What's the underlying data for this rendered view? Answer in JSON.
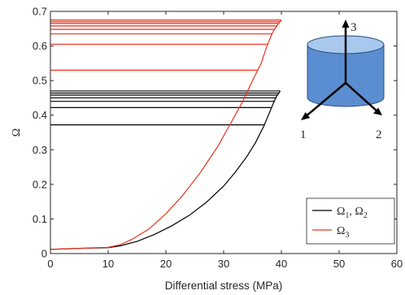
{
  "chart_data": {
    "type": "line",
    "title": "",
    "xlabel": "Differential stress (MPa)",
    "ylabel": "Ω",
    "xlim": [
      0,
      60
    ],
    "ylim": [
      0,
      0.7
    ],
    "x_ticks": [
      "0",
      "10",
      "20",
      "30",
      "40",
      "50",
      "60"
    ],
    "y_ticks": [
      "0",
      "0.1",
      "0.2",
      "0.3",
      "0.4",
      "0.5",
      "0.6",
      "0.7"
    ],
    "grid": false,
    "legend_position": "bottom-right",
    "legend": [
      {
        "label": "Ω",
        "sub": "1",
        "label2": ", Ω",
        "sub2": "2",
        "color": "#000000"
      },
      {
        "label": "Ω",
        "sub": "3",
        "color": "#e8321e"
      }
    ],
    "series": [
      {
        "series_key": "omega12",
        "color": "#000000",
        "curve": [
          [
            0,
            0.012
          ],
          [
            5,
            0.015
          ],
          [
            10,
            0.017
          ],
          [
            12,
            0.022
          ],
          [
            15,
            0.035
          ],
          [
            18,
            0.055
          ],
          [
            21,
            0.08
          ],
          [
            24,
            0.11
          ],
          [
            27,
            0.148
          ],
          [
            30,
            0.195
          ],
          [
            32,
            0.235
          ],
          [
            34,
            0.28
          ],
          [
            35.5,
            0.32
          ],
          [
            37,
            0.37
          ],
          [
            38,
            0.41
          ],
          [
            39,
            0.45
          ],
          [
            39.8,
            0.47
          ]
        ],
        "levels": [
          {
            "y": 0.372,
            "x_end": 37.0
          },
          {
            "y": 0.422,
            "x_end": 38.4
          },
          {
            "y": 0.44,
            "x_end": 38.9
          },
          {
            "y": 0.45,
            "x_end": 39.2
          },
          {
            "y": 0.458,
            "x_end": 39.4
          },
          {
            "y": 0.464,
            "x_end": 39.6
          },
          {
            "y": 0.47,
            "x_end": 39.8
          }
        ]
      },
      {
        "series_key": "omega3",
        "color": "#e8321e",
        "curve": [
          [
            0,
            0.012
          ],
          [
            5,
            0.015
          ],
          [
            10,
            0.018
          ],
          [
            12,
            0.025
          ],
          [
            14,
            0.04
          ],
          [
            17,
            0.07
          ],
          [
            20,
            0.115
          ],
          [
            23,
            0.17
          ],
          [
            26,
            0.235
          ],
          [
            29,
            0.31
          ],
          [
            31,
            0.37
          ],
          [
            33,
            0.43
          ],
          [
            35,
            0.5
          ],
          [
            36.5,
            0.55
          ],
          [
            37.5,
            0.6
          ],
          [
            38.5,
            0.64
          ],
          [
            39.3,
            0.66
          ],
          [
            40,
            0.675
          ]
        ],
        "levels": [
          {
            "y": 0.53,
            "x_end": 35.9
          },
          {
            "y": 0.605,
            "x_end": 37.6
          },
          {
            "y": 0.635,
            "x_end": 38.4
          },
          {
            "y": 0.648,
            "x_end": 38.9
          },
          {
            "y": 0.658,
            "x_end": 39.2
          },
          {
            "y": 0.665,
            "x_end": 39.5
          },
          {
            "y": 0.67,
            "x_end": 39.7
          },
          {
            "y": 0.675,
            "x_end": 40.0
          }
        ]
      }
    ],
    "inset": {
      "axis_labels": [
        "3",
        "1",
        "2"
      ],
      "cylinder_color": "#5b8ed0",
      "cylinder_top_color": "#a9c8ee"
    }
  }
}
